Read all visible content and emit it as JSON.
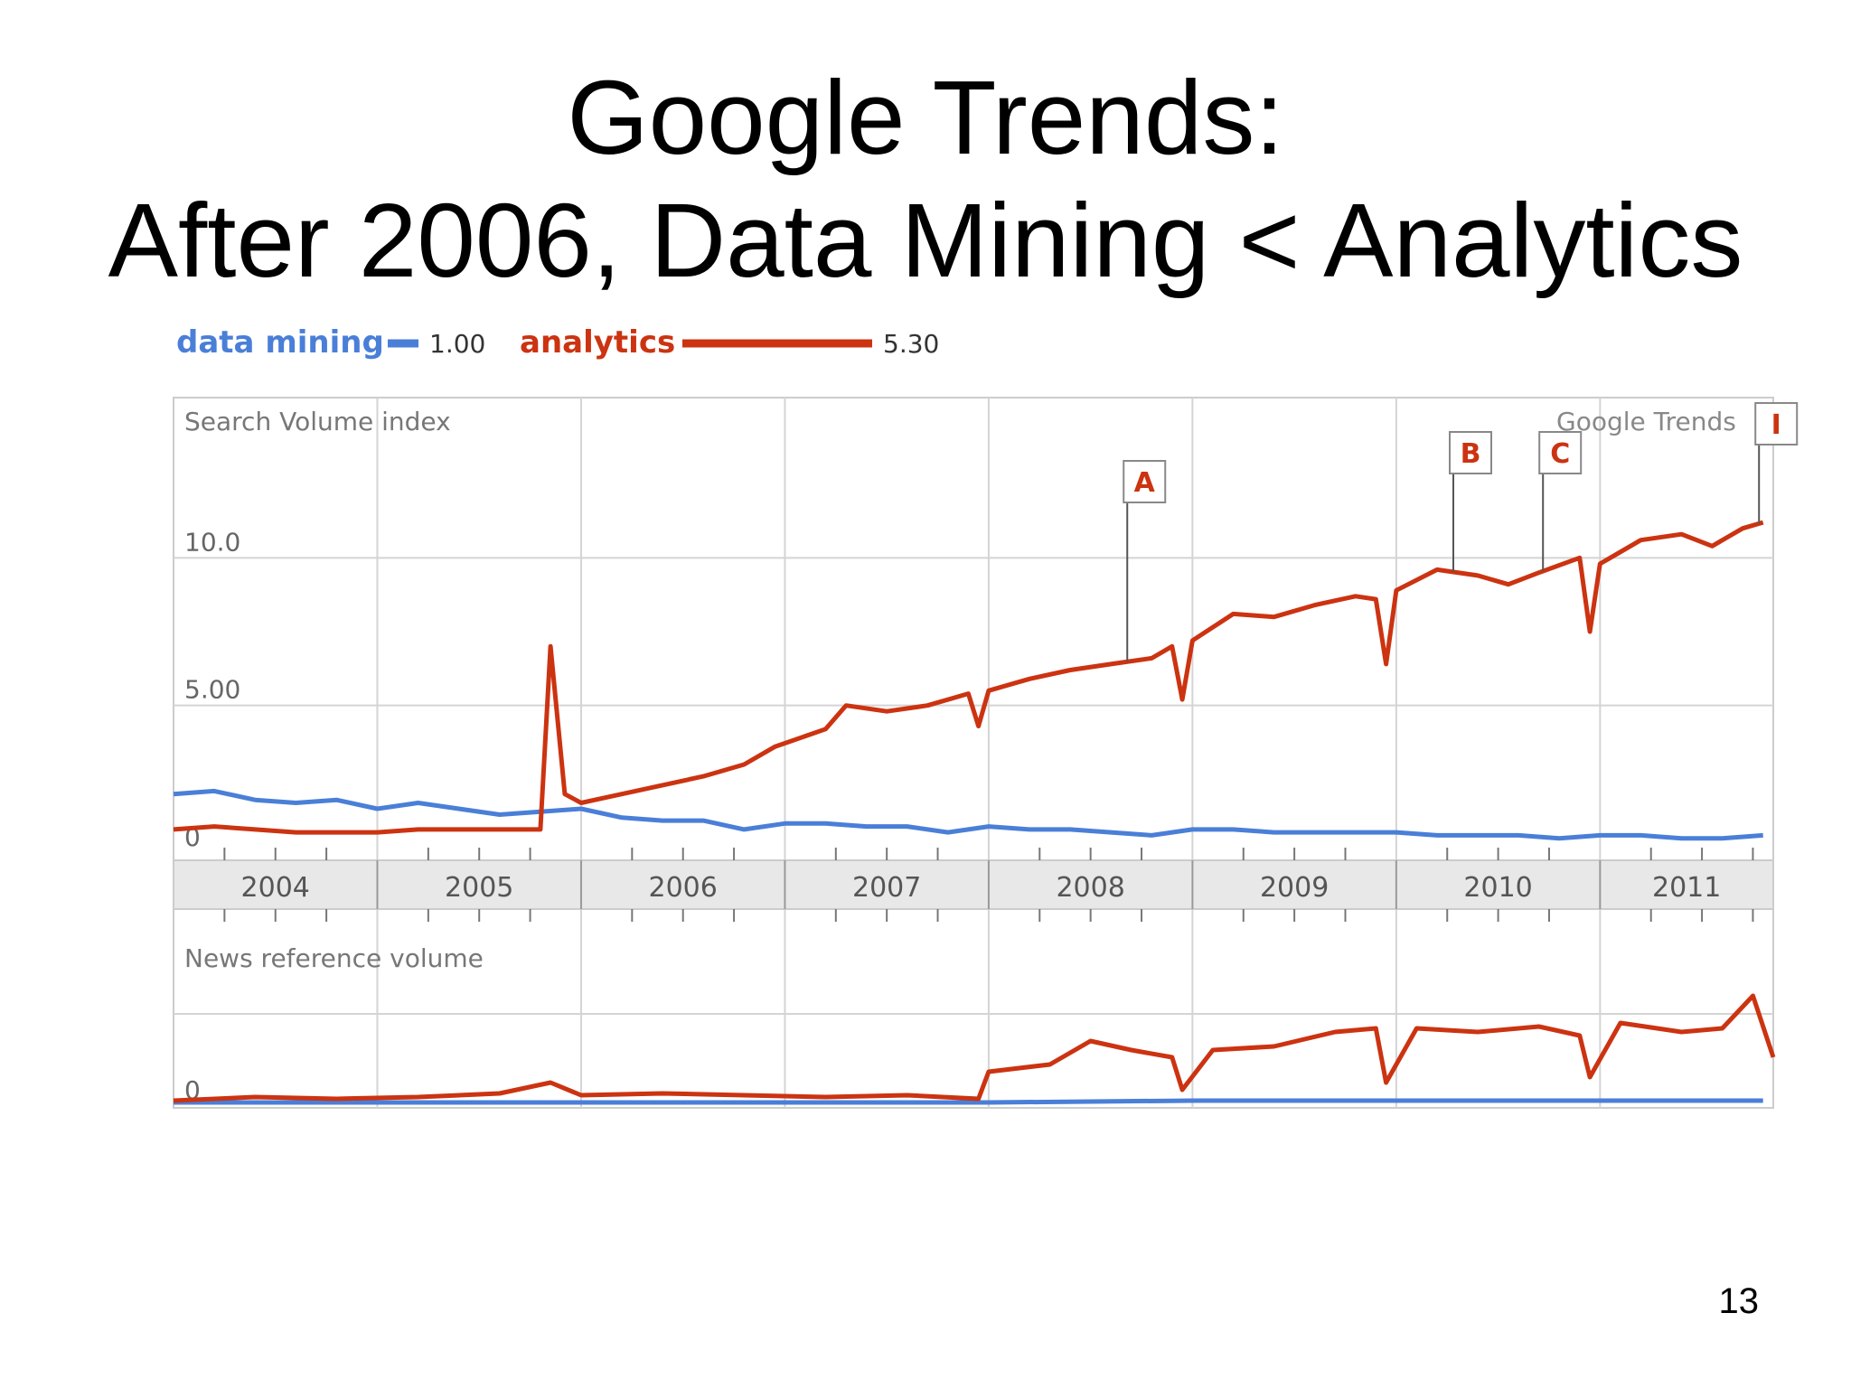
{
  "slide": {
    "title_line1": "Google Trends:",
    "title_line2": "After 2006, Data Mining < Analytics",
    "page_number": "13"
  },
  "chart_data": {
    "type": "line",
    "source_watermark": "Google Trends",
    "legend": [
      {
        "name": "data mining",
        "color": "#4a7fd8",
        "average": "1.00"
      },
      {
        "name": "analytics",
        "color": "#cc3311",
        "average": "5.30"
      }
    ],
    "years": [
      "2004",
      "2005",
      "2006",
      "2007",
      "2008",
      "2009",
      "2010",
      "2011"
    ],
    "x_range": [
      2004.0,
      2011.85
    ],
    "panels": {
      "search": {
        "label": "Search Volume index",
        "ylim": [
          0,
          15
        ],
        "yticks": [
          {
            "value": 0,
            "label": "0"
          },
          {
            "value": 5,
            "label": "5.00"
          },
          {
            "value": 10,
            "label": "10.0"
          }
        ],
        "series": [
          {
            "name": "data mining",
            "points": [
              [
                2004.0,
                2.0
              ],
              [
                2004.2,
                2.1
              ],
              [
                2004.4,
                1.8
              ],
              [
                2004.6,
                1.7
              ],
              [
                2004.8,
                1.8
              ],
              [
                2005.0,
                1.5
              ],
              [
                2005.2,
                1.7
              ],
              [
                2005.4,
                1.5
              ],
              [
                2005.6,
                1.3
              ],
              [
                2005.8,
                1.4
              ],
              [
                2006.0,
                1.5
              ],
              [
                2006.2,
                1.2
              ],
              [
                2006.4,
                1.1
              ],
              [
                2006.6,
                1.1
              ],
              [
                2006.8,
                0.8
              ],
              [
                2007.0,
                1.0
              ],
              [
                2007.2,
                1.0
              ],
              [
                2007.4,
                0.9
              ],
              [
                2007.6,
                0.9
              ],
              [
                2007.8,
                0.7
              ],
              [
                2008.0,
                0.9
              ],
              [
                2008.2,
                0.8
              ],
              [
                2008.4,
                0.8
              ],
              [
                2008.6,
                0.7
              ],
              [
                2008.8,
                0.6
              ],
              [
                2009.0,
                0.8
              ],
              [
                2009.2,
                0.8
              ],
              [
                2009.4,
                0.7
              ],
              [
                2009.6,
                0.7
              ],
              [
                2009.8,
                0.7
              ],
              [
                2010.0,
                0.7
              ],
              [
                2010.2,
                0.6
              ],
              [
                2010.4,
                0.6
              ],
              [
                2010.6,
                0.6
              ],
              [
                2010.8,
                0.5
              ],
              [
                2011.0,
                0.6
              ],
              [
                2011.2,
                0.6
              ],
              [
                2011.4,
                0.5
              ],
              [
                2011.6,
                0.5
              ],
              [
                2011.8,
                0.6
              ]
            ]
          },
          {
            "name": "analytics",
            "points": [
              [
                2004.0,
                0.8
              ],
              [
                2004.2,
                0.9
              ],
              [
                2004.4,
                0.8
              ],
              [
                2004.6,
                0.7
              ],
              [
                2004.8,
                0.7
              ],
              [
                2005.0,
                0.7
              ],
              [
                2005.2,
                0.8
              ],
              [
                2005.4,
                0.8
              ],
              [
                2005.6,
                0.8
              ],
              [
                2005.8,
                0.8
              ],
              [
                2005.85,
                7.0
              ],
              [
                2005.92,
                2.0
              ],
              [
                2006.0,
                1.7
              ],
              [
                2006.2,
                2.0
              ],
              [
                2006.4,
                2.3
              ],
              [
                2006.6,
                2.6
              ],
              [
                2006.8,
                3.0
              ],
              [
                2006.95,
                3.6
              ],
              [
                2007.2,
                4.2
              ],
              [
                2007.3,
                5.0
              ],
              [
                2007.5,
                4.8
              ],
              [
                2007.7,
                5.0
              ],
              [
                2007.9,
                5.4
              ],
              [
                2007.95,
                4.3
              ],
              [
                2008.0,
                5.5
              ],
              [
                2008.2,
                5.9
              ],
              [
                2008.4,
                6.2
              ],
              [
                2008.6,
                6.4
              ],
              [
                2008.8,
                6.6
              ],
              [
                2008.9,
                7.0
              ],
              [
                2008.95,
                5.2
              ],
              [
                2009.0,
                7.2
              ],
              [
                2009.2,
                8.1
              ],
              [
                2009.4,
                8.0
              ],
              [
                2009.6,
                8.4
              ],
              [
                2009.8,
                8.7
              ],
              [
                2009.9,
                8.6
              ],
              [
                2009.95,
                6.4
              ],
              [
                2010.0,
                8.9
              ],
              [
                2010.2,
                9.6
              ],
              [
                2010.4,
                9.4
              ],
              [
                2010.55,
                9.1
              ],
              [
                2010.7,
                9.5
              ],
              [
                2010.9,
                10.0
              ],
              [
                2010.95,
                7.5
              ],
              [
                2011.0,
                9.8
              ],
              [
                2011.2,
                10.6
              ],
              [
                2011.4,
                10.8
              ],
              [
                2011.55,
                10.4
              ],
              [
                2011.7,
                11.0
              ],
              [
                2011.8,
                11.2
              ]
            ]
          }
        ],
        "annotations": [
          {
            "label": "A",
            "x": 2008.68
          },
          {
            "label": "B",
            "x": 2010.28
          },
          {
            "label": "C",
            "x": 2010.72
          },
          {
            "label": "I",
            "x": 2011.78
          }
        ]
      },
      "news": {
        "label": "News reference volume",
        "ylim": [
          0,
          10
        ],
        "yticks": [
          {
            "value": 0,
            "label": "0"
          }
        ],
        "series": [
          {
            "name": "data mining",
            "points": [
              [
                2004.0,
                0.1
              ],
              [
                2005.0,
                0.1
              ],
              [
                2006.0,
                0.1
              ],
              [
                2007.0,
                0.1
              ],
              [
                2008.0,
                0.1
              ],
              [
                2009.0,
                0.2
              ],
              [
                2010.0,
                0.2
              ],
              [
                2011.0,
                0.2
              ],
              [
                2011.8,
                0.2
              ]
            ]
          },
          {
            "name": "analytics",
            "points": [
              [
                2004.0,
                0.2
              ],
              [
                2004.4,
                0.4
              ],
              [
                2004.8,
                0.3
              ],
              [
                2005.2,
                0.4
              ],
              [
                2005.6,
                0.6
              ],
              [
                2005.85,
                1.2
              ],
              [
                2006.0,
                0.5
              ],
              [
                2006.4,
                0.6
              ],
              [
                2006.8,
                0.5
              ],
              [
                2007.2,
                0.4
              ],
              [
                2007.6,
                0.5
              ],
              [
                2007.95,
                0.3
              ],
              [
                2008.0,
                1.8
              ],
              [
                2008.3,
                2.2
              ],
              [
                2008.5,
                3.5
              ],
              [
                2008.7,
                3.0
              ],
              [
                2008.9,
                2.6
              ],
              [
                2008.95,
                0.8
              ],
              [
                2009.1,
                3.0
              ],
              [
                2009.4,
                3.2
              ],
              [
                2009.7,
                4.0
              ],
              [
                2009.9,
                4.2
              ],
              [
                2009.95,
                1.2
              ],
              [
                2010.1,
                4.2
              ],
              [
                2010.4,
                4.0
              ],
              [
                2010.7,
                4.3
              ],
              [
                2010.9,
                3.8
              ],
              [
                2010.95,
                1.5
              ],
              [
                2011.1,
                4.5
              ],
              [
                2011.4,
                4.0
              ],
              [
                2011.6,
                4.2
              ],
              [
                2011.75,
                6.0
              ],
              [
                2011.85,
                2.6
              ]
            ]
          }
        ]
      }
    }
  }
}
